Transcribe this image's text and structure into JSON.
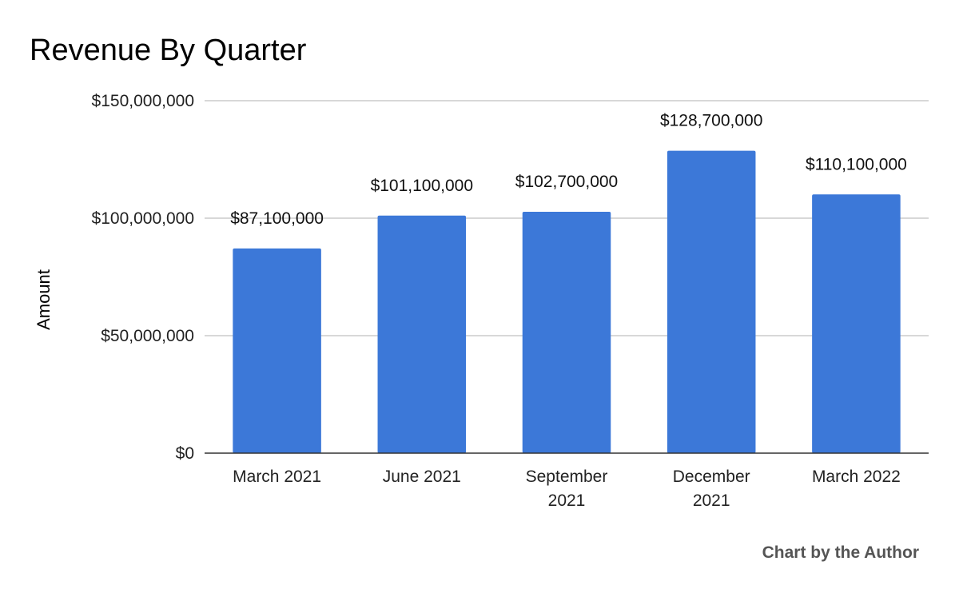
{
  "chart_data": {
    "type": "bar",
    "title": "Revenue By Quarter",
    "xlabel": "",
    "ylabel": "Amount",
    "categories": [
      [
        "March 2021"
      ],
      [
        "June 2021"
      ],
      [
        "September",
        "2021"
      ],
      [
        "December",
        "2021"
      ],
      [
        "March 2022"
      ]
    ],
    "values": [
      87100000,
      101100000,
      102700000,
      128700000,
      110100000
    ],
    "data_labels": [
      "$87,100,000",
      "$101,100,000",
      "$102,700,000",
      "$128,700,000",
      "$110,100,000"
    ],
    "ylim": [
      0,
      150000000
    ],
    "yticks": [
      0,
      50000000,
      100000000,
      150000000
    ],
    "ytick_labels": [
      "$0",
      "$50,000,000",
      "$100,000,000",
      "$150,000,000"
    ],
    "grid": true,
    "bar_color": "#3c78d8",
    "gridline_color": "#cccccc",
    "credit": "Chart by the Author"
  }
}
